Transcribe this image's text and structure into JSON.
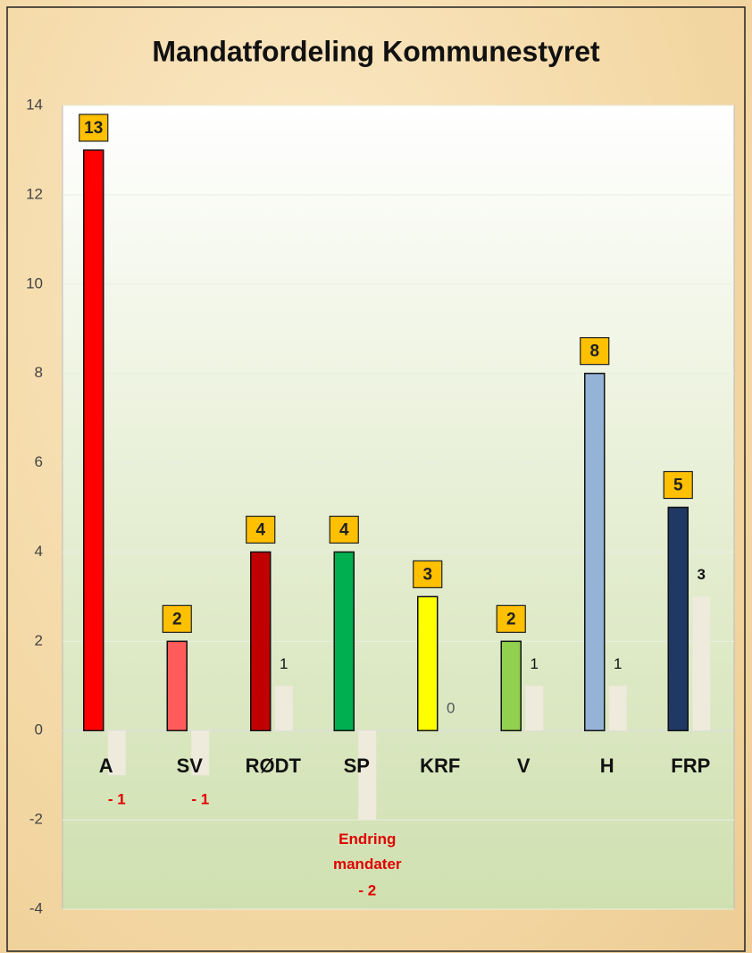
{
  "chart_data": {
    "type": "bar",
    "title": "Mandatfordeling Kommunestyret",
    "categories": [
      "A",
      "SV",
      "RØDT",
      "SP",
      "KRF",
      "V",
      "H",
      "FRP"
    ],
    "series": [
      {
        "colors": [
          "#ff0000",
          "#ff5b5b",
          "#c00000",
          "#00b050",
          "#ffff00",
          "#92d050",
          "#95b3d7",
          "#1f3864"
        ],
        "values": [
          13,
          2,
          4,
          4,
          3,
          2,
          8,
          5
        ]
      },
      {
        "color": "#eeeadc",
        "values": [
          -1,
          -1,
          1,
          -2,
          0,
          1,
          1,
          3
        ],
        "value_labels": [
          "- 1",
          "- 1",
          "1",
          "- 2",
          "0",
          "1",
          "1",
          "3"
        ]
      }
    ],
    "annotation": "Endring mandater",
    "ylim": [
      -4,
      14
    ],
    "yticks": [
      -4,
      -2,
      0,
      2,
      4,
      6,
      8,
      10,
      12,
      14
    ],
    "grid": true
  }
}
